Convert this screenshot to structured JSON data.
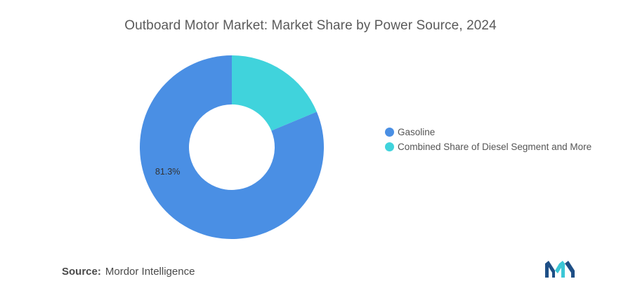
{
  "chart_data": {
    "type": "pie",
    "variant": "donut",
    "title": "Outboard Motor Market: Market Share by Power Source, 2024",
    "slices": [
      {
        "label": "Gasoline",
        "value": 81.3,
        "color": "#4a8fe4",
        "data_label": "81.3%"
      },
      {
        "label": "Combined Share of Diesel Segment and More",
        "value": 18.7,
        "color": "#40d3dc",
        "data_label": ""
      }
    ],
    "legend_position": "right"
  },
  "source": {
    "label": "Source:",
    "text": "Mordor Intelligence"
  },
  "logo": {
    "icon": "mordor-intelligence-logo",
    "colors": [
      "#1e4f86",
      "#3cc7d6"
    ]
  }
}
